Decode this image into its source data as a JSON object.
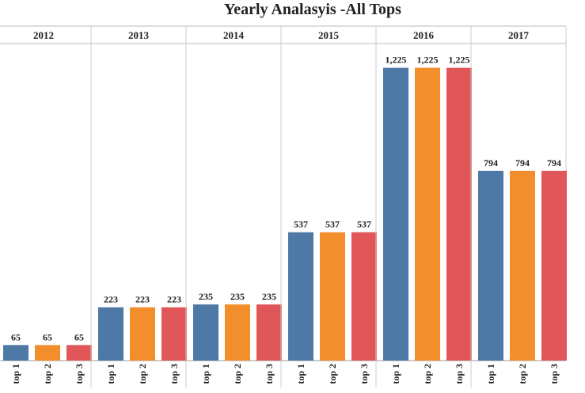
{
  "chart_data": {
    "type": "bar",
    "title": "Yearly Analasyis -All Tops",
    "categories": [
      "2012",
      "2013",
      "2014",
      "2015",
      "2016",
      "2017"
    ],
    "series": [
      {
        "name": "top 1",
        "color": "#4e79a7",
        "values": [
          65,
          223,
          235,
          537,
          1225,
          794
        ],
        "value_labels": [
          "65",
          "223",
          "235",
          "537",
          "1,225",
          "794"
        ]
      },
      {
        "name": "top 2",
        "color": "#f28e2b",
        "values": [
          65,
          223,
          235,
          537,
          1225,
          794
        ],
        "value_labels": [
          "65",
          "223",
          "235",
          "537",
          "1,225",
          "794"
        ]
      },
      {
        "name": "top 3",
        "color": "#e15759",
        "values": [
          65,
          223,
          235,
          537,
          1225,
          794
        ],
        "value_labels": [
          "65",
          "223",
          "235",
          "537",
          "1,225",
          "794"
        ]
      }
    ],
    "ylim": [
      0,
      1300
    ]
  }
}
